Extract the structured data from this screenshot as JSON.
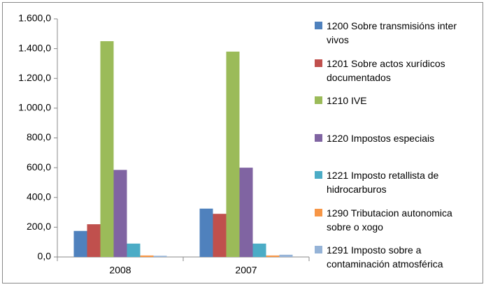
{
  "chart_data": {
    "type": "bar",
    "categories": [
      "2008",
      "2007"
    ],
    "series": [
      {
        "name": "1200 Sobre transmisións inter vivos",
        "color": "#4f81bd",
        "values": [
          175,
          325
        ]
      },
      {
        "name": "1201 Sobre actos xurídicos documentados",
        "color": "#c0504d",
        "values": [
          220,
          290
        ]
      },
      {
        "name": "1210 IVE",
        "color": "#9bbb59",
        "values": [
          1450,
          1380
        ]
      },
      {
        "name": "1220 Impostos especiais",
        "color": "#8064a2",
        "values": [
          585,
          600
        ]
      },
      {
        "name": "1221 Imposto retallista de hidrocarburos",
        "color": "#4bacc6",
        "values": [
          90,
          90
        ]
      },
      {
        "name": "1290 Tributacion autonomica sobre o xogo",
        "color": "#f79646",
        "values": [
          10,
          10
        ]
      },
      {
        "name": "1291 Imposto sobre a contaminación atmosférica",
        "color": "#95b3d7",
        "values": [
          8,
          15
        ]
      }
    ],
    "ylim": [
      0,
      1600
    ],
    "yticks": [
      {
        "value": 0,
        "label": "0,0"
      },
      {
        "value": 200,
        "label": "200,0"
      },
      {
        "value": 400,
        "label": "400,0"
      },
      {
        "value": 600,
        "label": "600,0"
      },
      {
        "value": 800,
        "label": "800,0"
      },
      {
        "value": 1000,
        "label": "1.000,0"
      },
      {
        "value": 1200,
        "label": "1.200,0"
      },
      {
        "value": 1400,
        "label": "1.400,0"
      },
      {
        "value": 1600,
        "label": "1.600,0"
      }
    ],
    "legend": "right"
  }
}
